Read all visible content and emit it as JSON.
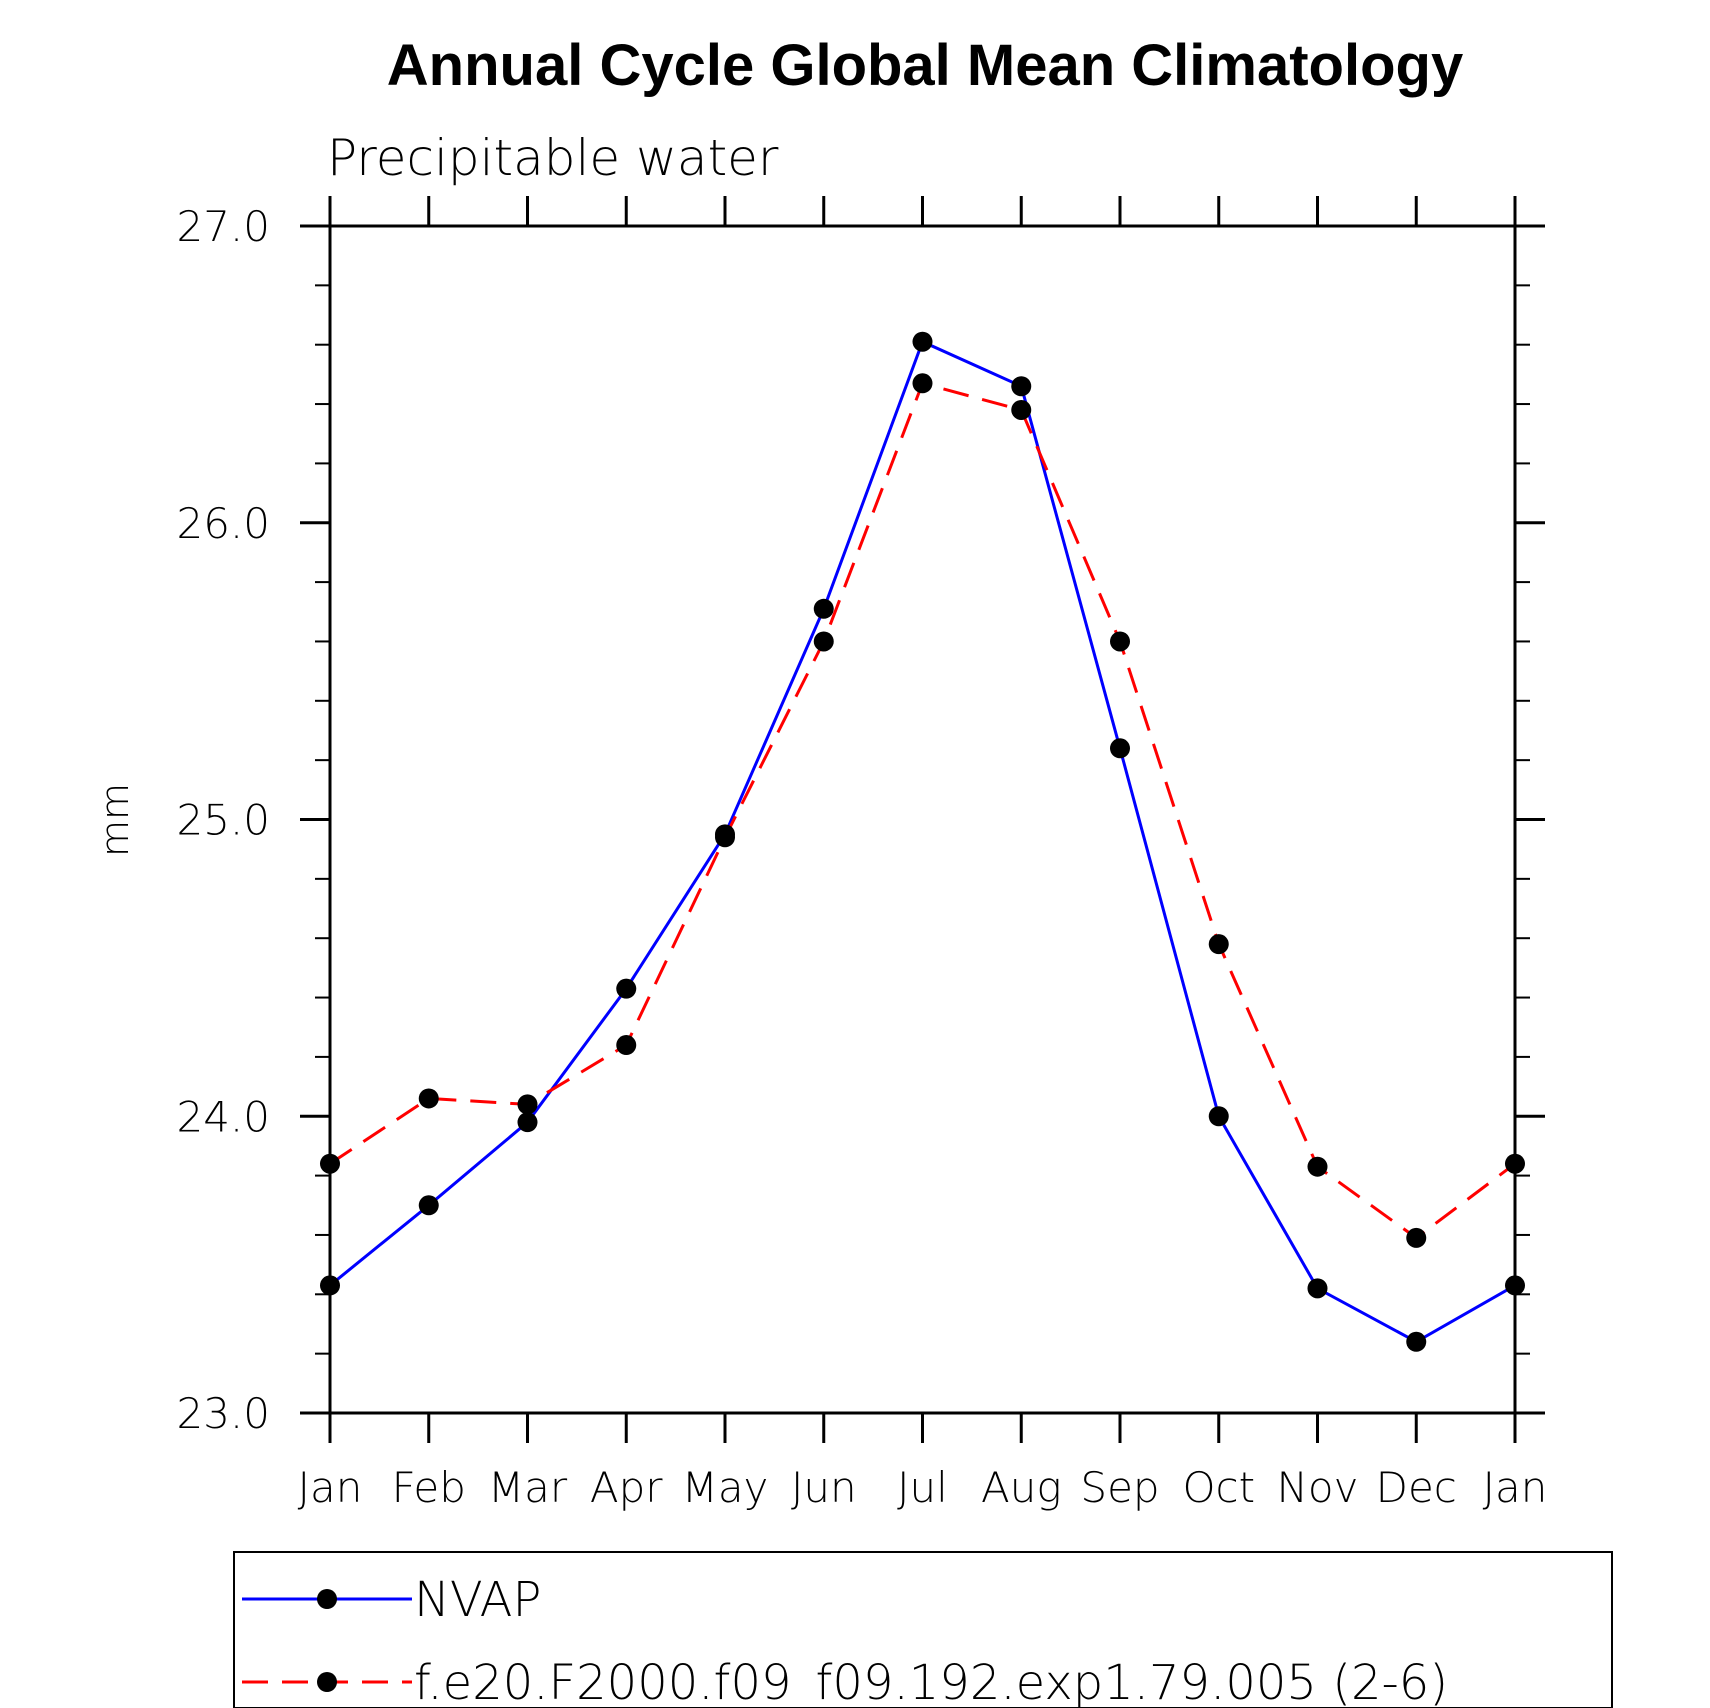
{
  "chart_data": {
    "type": "line",
    "title": "Annual Cycle Global Mean Climatology",
    "subtitle": "Precipitable water",
    "ylabel": "mm",
    "xlabel": "",
    "categories": [
      "Jan",
      "Feb",
      "Mar",
      "Apr",
      "May",
      "Jun",
      "Jul",
      "Aug",
      "Sep",
      "Oct",
      "Nov",
      "Dec",
      "Jan"
    ],
    "ylim": [
      23.0,
      27.0
    ],
    "yticks": [
      "23.0",
      "24.0",
      "25.0",
      "26.0",
      "27.0"
    ],
    "ytick_values": [
      23.0,
      24.0,
      25.0,
      26.0,
      27.0
    ],
    "grid": false,
    "legend_position": "bottom",
    "series": [
      {
        "name": "NVAP",
        "color": "#0000ff",
        "dash": "solid",
        "marker": "circle",
        "values": [
          23.43,
          23.7,
          23.98,
          24.43,
          24.95,
          25.71,
          26.61,
          26.46,
          25.24,
          24.0,
          23.42,
          23.24,
          23.43
        ]
      },
      {
        "name": "f.e20.F2000.f09_f09.192.exp1.79.005 (2-6)",
        "color": "#ff0000",
        "dash": "dashed",
        "marker": "circle",
        "values": [
          23.84,
          24.06,
          24.04,
          24.24,
          24.94,
          25.6,
          26.47,
          26.38,
          25.6,
          24.58,
          23.83,
          23.59,
          23.84
        ]
      }
    ]
  }
}
